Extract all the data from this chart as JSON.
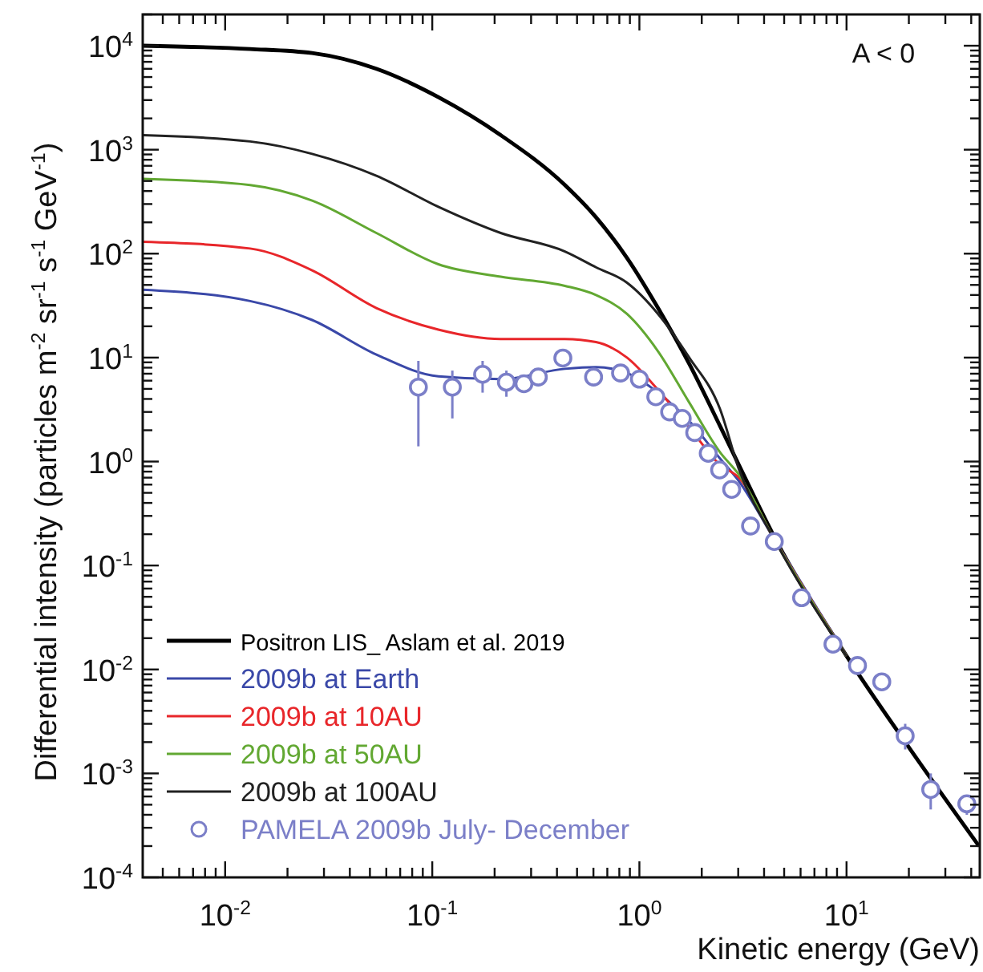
{
  "chart_data": {
    "type": "line",
    "xlabel": "Kinetic energy (GeV)",
    "ylabel": "Differential intensity (particles m$^{-2}$ sr$^{-1}$ s$^{-1}$ GeV$^{-1}$)",
    "log": "xy",
    "xlim": [
      0.004,
      44
    ],
    "ylim": [
      0.0001,
      20000
    ],
    "xticks": [
      {
        "value": 0.005,
        "label": null
      },
      {
        "value": 0.006,
        "label": null
      },
      {
        "value": 0.007,
        "label": null
      },
      {
        "value": 0.008,
        "label": null
      },
      {
        "value": 0.009,
        "label": null
      },
      {
        "value": 0.01,
        "label": "10$^{-2}$"
      },
      {
        "value": 0.02,
        "label": null
      },
      {
        "value": 0.03,
        "label": null
      },
      {
        "value": 0.04,
        "label": null
      },
      {
        "value": 0.05,
        "label": null
      },
      {
        "value": 0.06,
        "label": null
      },
      {
        "value": 0.07,
        "label": null
      },
      {
        "value": 0.08,
        "label": null
      },
      {
        "value": 0.09,
        "label": null
      },
      {
        "value": 0.1,
        "label": "10$^{-1}$"
      },
      {
        "value": 0.2,
        "label": null
      },
      {
        "value": 0.3,
        "label": null
      },
      {
        "value": 0.4,
        "label": null
      },
      {
        "value": 0.5,
        "label": null
      },
      {
        "value": 0.6,
        "label": null
      },
      {
        "value": 0.7,
        "label": null
      },
      {
        "value": 0.8,
        "label": null
      },
      {
        "value": 0.9,
        "label": null
      },
      {
        "value": 1,
        "label": "10$^{0}$"
      },
      {
        "value": 2,
        "label": null
      },
      {
        "value": 3,
        "label": null
      },
      {
        "value": 4,
        "label": null
      },
      {
        "value": 5,
        "label": null
      },
      {
        "value": 6,
        "label": null
      },
      {
        "value": 7,
        "label": null
      },
      {
        "value": 8,
        "label": null
      },
      {
        "value": 9,
        "label": null
      },
      {
        "value": 10,
        "label": "10$^{1}$"
      },
      {
        "value": 20,
        "label": null
      },
      {
        "value": 30,
        "label": null
      },
      {
        "value": 40,
        "label": null
      }
    ],
    "yticks": [
      {
        "value": 0.0001,
        "label": "10$^{-4}$"
      },
      {
        "value": 0.0002,
        "label": null
      },
      {
        "value": 0.0003,
        "label": null
      },
      {
        "value": 0.0004,
        "label": null
      },
      {
        "value": 0.0005,
        "label": null
      },
      {
        "value": 0.0006,
        "label": null
      },
      {
        "value": 0.0007,
        "label": null
      },
      {
        "value": 0.0008,
        "label": null
      },
      {
        "value": 0.0009,
        "label": null
      },
      {
        "value": 0.001,
        "label": "10$^{-3}$"
      },
      {
        "value": 0.002,
        "label": null
      },
      {
        "value": 0.003,
        "label": null
      },
      {
        "value": 0.004,
        "label": null
      },
      {
        "value": 0.005,
        "label": null
      },
      {
        "value": 0.006,
        "label": null
      },
      {
        "value": 0.007,
        "label": null
      },
      {
        "value": 0.008,
        "label": null
      },
      {
        "value": 0.009,
        "label": null
      },
      {
        "value": 0.01,
        "label": "10$^{-2}$"
      },
      {
        "value": 0.02,
        "label": null
      },
      {
        "value": 0.03,
        "label": null
      },
      {
        "value": 0.04,
        "label": null
      },
      {
        "value": 0.05,
        "label": null
      },
      {
        "value": 0.06,
        "label": null
      },
      {
        "value": 0.07,
        "label": null
      },
      {
        "value": 0.08,
        "label": null
      },
      {
        "value": 0.09,
        "label": null
      },
      {
        "value": 0.1,
        "label": "10$^{-1}$"
      },
      {
        "value": 0.2,
        "label": null
      },
      {
        "value": 0.3,
        "label": null
      },
      {
        "value": 0.4,
        "label": null
      },
      {
        "value": 0.5,
        "label": null
      },
      {
        "value": 0.6,
        "label": null
      },
      {
        "value": 0.7,
        "label": null
      },
      {
        "value": 0.8,
        "label": null
      },
      {
        "value": 0.9,
        "label": null
      },
      {
        "value": 1,
        "label": "10$^{0}$"
      },
      {
        "value": 2,
        "label": null
      },
      {
        "value": 3,
        "label": null
      },
      {
        "value": 4,
        "label": null
      },
      {
        "value": 5,
        "label": null
      },
      {
        "value": 6,
        "label": null
      },
      {
        "value": 7,
        "label": null
      },
      {
        "value": 8,
        "label": null
      },
      {
        "value": 9,
        "label": null
      },
      {
        "value": 10,
        "label": "10$^{1}$"
      },
      {
        "value": 20,
        "label": null
      },
      {
        "value": 30,
        "label": null
      },
      {
        "value": 40,
        "label": null
      },
      {
        "value": 50,
        "label": null
      },
      {
        "value": 60,
        "label": null
      },
      {
        "value": 70,
        "label": null
      },
      {
        "value": 80,
        "label": null
      },
      {
        "value": 90,
        "label": null
      },
      {
        "value": 100,
        "label": "10$^{2}$"
      },
      {
        "value": 200,
        "label": null
      },
      {
        "value": 300,
        "label": null
      },
      {
        "value": 400,
        "label": null
      },
      {
        "value": 500,
        "label": null
      },
      {
        "value": 600,
        "label": null
      },
      {
        "value": 700,
        "label": null
      },
      {
        "value": 800,
        "label": null
      },
      {
        "value": 900,
        "label": null
      },
      {
        "value": 1000,
        "label": "10$^{3}$"
      },
      {
        "value": 2000,
        "label": null
      },
      {
        "value": 3000,
        "label": null
      },
      {
        "value": 4000,
        "label": null
      },
      {
        "value": 5000,
        "label": null
      },
      {
        "value": 6000,
        "label": null
      },
      {
        "value": 7000,
        "label": null
      },
      {
        "value": 8000,
        "label": null
      },
      {
        "value": 9000,
        "label": null
      },
      {
        "value": 10000,
        "label": "10$^{4}$"
      },
      {
        "value": 20000,
        "label": null
      }
    ],
    "x": [
      0.004,
      0.0132,
      0.0263,
      0.0537,
      0.107,
      0.214,
      0.437,
      0.617,
      0.871,
      1.23,
      1.74,
      2.45,
      3.02,
      4.47,
      10,
      20,
      43.6
    ],
    "legend": "bottom left",
    "annotations": [
      "A < 0"
    ],
    "series": [
      {
        "name": "Positron LIS_ Aslam et al. 2019",
        "color": "#000000",
        "values": [
          10000,
          9300,
          8500,
          6000,
          3200,
          1380,
          457,
          224,
          91,
          30,
          8.7,
          2.2,
          0.93,
          0.19,
          0.0135,
          0.00178,
          0.0002
        ]
      },
      {
        "name": "2009b at Earth",
        "color": "#3a48a8",
        "values": [
          45,
          35,
          23,
          10.7,
          6.6,
          6.2,
          7.8,
          8.1,
          7.1,
          4.6,
          2.45,
          1.07,
          0.65,
          0.18,
          0.0135,
          null,
          null
        ]
      },
      {
        "name": "2009b at 10AU",
        "color": "#e8262a",
        "values": [
          130,
          112,
          69,
          30,
          18.6,
          15.1,
          15.1,
          14.1,
          10,
          4.9,
          2.14,
          0.93,
          0.7,
          0.18,
          0.0135,
          null,
          null
        ]
      },
      {
        "name": "2009b at 50AU",
        "color": "#62a832",
        "values": [
          525,
          457,
          324,
          158,
          79,
          60,
          49,
          40,
          26.3,
          11.5,
          3.7,
          1.23,
          0.75,
          0.18,
          0.0135,
          null,
          null
        ]
      },
      {
        "name": "2009b at 100AU",
        "color": "#222222",
        "values": [
          1380,
          1200,
          912,
          562,
          282,
          158,
          105,
          74,
          52.5,
          26.3,
          10,
          3.2,
          0.85,
          0.18,
          0.0135,
          null,
          null
        ]
      },
      {
        "name": "PAMELA 2009b July- December",
        "type": "scatter",
        "marker": "circle",
        "color": "#7b7fc8",
        "x": [
          0.0857,
          0.125,
          0.175,
          0.228,
          0.277,
          0.325,
          0.427,
          0.601,
          0.811,
          1.0,
          1.2,
          1.4,
          1.61,
          1.85,
          2.15,
          2.44,
          2.79,
          3.44,
          4.48,
          6.07,
          8.6,
          11.3,
          14.8,
          19.2,
          25.5,
          38.1
        ],
        "values": [
          5.2,
          5.2,
          6.9,
          5.8,
          5.6,
          6.5,
          9.9,
          6.5,
          7.1,
          6.2,
          4.2,
          3.0,
          2.6,
          1.9,
          1.2,
          0.83,
          0.54,
          0.24,
          0.17,
          0.049,
          0.0175,
          0.0109,
          0.0076,
          0.0023,
          0.0007,
          0.00051
        ],
        "errors": [
          [
            1.4,
            9.3
          ],
          [
            2.6,
            7.5
          ],
          [
            4.6,
            9.3
          ],
          [
            4.2,
            7.5
          ],
          [
            4.7,
            6.6
          ],
          [
            5.7,
            7.5
          ],
          null,
          null,
          null,
          null,
          null,
          null,
          null,
          null,
          null,
          null,
          null,
          null,
          null,
          null,
          null,
          null,
          null,
          [
            0.0017,
            0.003
          ],
          [
            0.00045,
            0.001
          ],
          [
            0.0004,
            0.0006
          ]
        ]
      }
    ]
  }
}
